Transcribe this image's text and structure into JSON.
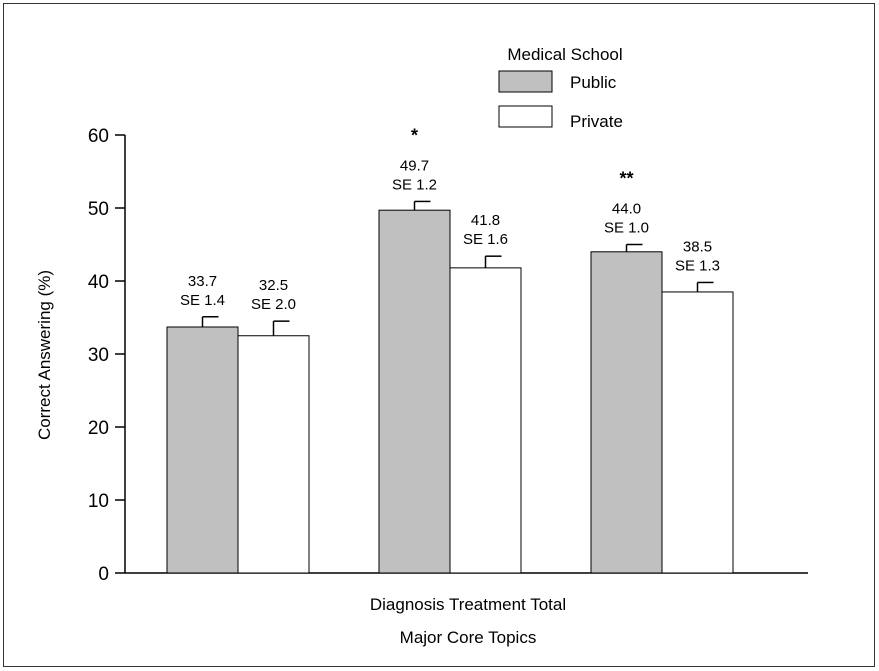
{
  "chart_data": {
    "type": "bar",
    "xlabel": "Major Core Topics",
    "ylabel": "Correct Answering (%)",
    "category_label_line": "Diagnosis Treatment Total",
    "categories": [
      "Diagnosis",
      "Treatment",
      "Total"
    ],
    "ylim": [
      0,
      60
    ],
    "yticks": [
      0,
      10,
      20,
      30,
      40,
      50,
      60
    ],
    "grid": false,
    "legend": {
      "title": "Medical School",
      "placement": "top-center",
      "entries": [
        "Public",
        "Private"
      ]
    },
    "series": [
      {
        "name": "Public",
        "color": "#c0c0c0",
        "values": [
          33.7,
          49.7,
          44.0
        ],
        "se": [
          1.4,
          1.2,
          1.0
        ],
        "value_labels": [
          "33.7",
          "49.7",
          "44.0"
        ],
        "se_labels": [
          "SE 1.4",
          "SE 1.2",
          "SE 1.0"
        ]
      },
      {
        "name": "Private",
        "color": "#ffffff",
        "values": [
          32.5,
          41.8,
          38.5
        ],
        "se": [
          2.0,
          1.6,
          1.3
        ],
        "value_labels": [
          "32.5",
          "41.8",
          "38.5"
        ],
        "se_labels": [
          "SE 2.0",
          "SE 1.6",
          "SE 1.3"
        ]
      }
    ],
    "significance_marks": [
      "",
      "*",
      "**"
    ]
  }
}
